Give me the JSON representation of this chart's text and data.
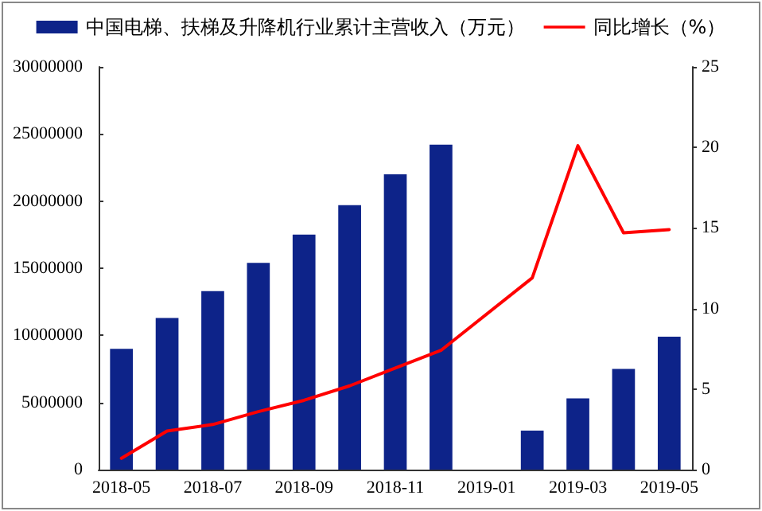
{
  "chart_data": {
    "type": "bar",
    "categories": [
      "2018-05",
      null,
      "2018-07",
      null,
      "2018-09",
      null,
      "2018-11",
      null,
      "2019-01",
      null,
      "2019-03",
      null,
      "2019-05"
    ],
    "series": [
      {
        "name": "中国电梯、扶梯及升降机行业累计主营收入（万元）",
        "color": "#0d2389",
        "values": [
          9000000,
          11300000,
          13300000,
          15400000,
          17500000,
          19700000,
          22000000,
          24200000,
          null,
          2900000,
          5300000,
          7500000,
          9900000
        ]
      },
      {
        "name": "同比增长（%）",
        "type": "line",
        "axis": "y2",
        "color": "#ff0000",
        "values": [
          0.7,
          2.4,
          2.8,
          3.6,
          4.3,
          5.2,
          6.3,
          7.4,
          null,
          11.9,
          20.1,
          14.7,
          14.9
        ]
      }
    ],
    "ylim": [
      0,
      30000000
    ],
    "yticks": [
      0,
      5000000,
      10000000,
      15000000,
      20000000,
      25000000,
      30000000
    ],
    "y2lim": [
      0,
      25
    ],
    "y2ticks": [
      0,
      5,
      10,
      15,
      20,
      25
    ],
    "legend": "top",
    "grid": false,
    "marker": "none"
  }
}
